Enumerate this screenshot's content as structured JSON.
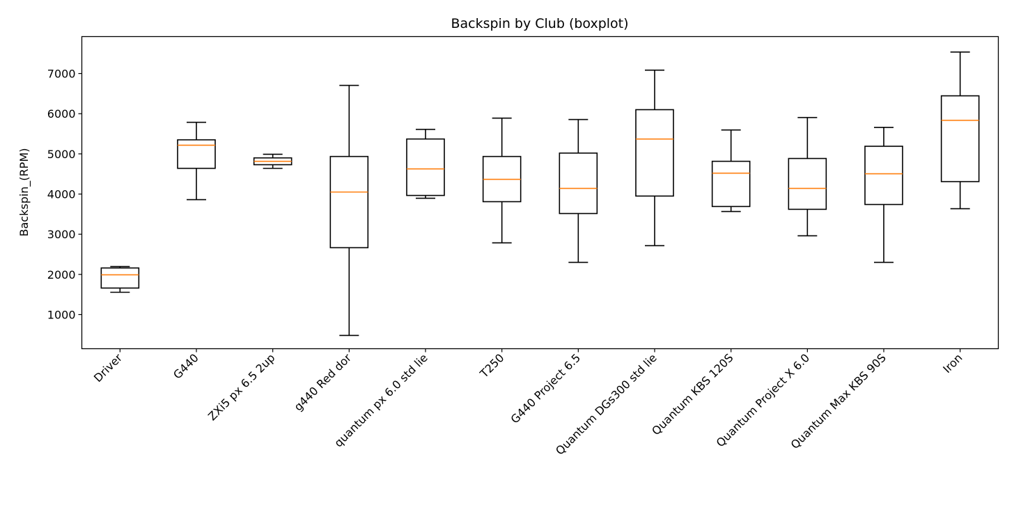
{
  "chart_data": {
    "type": "boxplot",
    "title": "Backspin by Club (boxplot)",
    "xlabel": "",
    "ylabel": "Backspin_(RPM)",
    "ylim": [
      150,
      7920
    ],
    "yticks": [
      1000,
      2000,
      3000,
      4000,
      5000,
      6000,
      7000
    ],
    "grid": false,
    "colors": {
      "box": "#000000",
      "median": "#ff7f0e"
    },
    "categories": [
      "Driver",
      "G440",
      "ZXi5 px 6.5 2up",
      "g440 Red dor",
      "quantum px 6.0 std lie",
      "T250",
      "G440 Project 6.5",
      "Quantum DGs300 std lie",
      "Quantum KBS 120S",
      "Quantum Project X 6.0",
      "Quantum Max KBS 90S",
      "Iron"
    ],
    "boxes": [
      {
        "whisker_low": 1555,
        "q1": 1660,
        "median": 1990,
        "q3": 2160,
        "whisker_high": 2195
      },
      {
        "whisker_low": 3860,
        "q1": 4640,
        "median": 5215,
        "q3": 5350,
        "whisker_high": 5785
      },
      {
        "whisker_low": 4640,
        "q1": 4730,
        "median": 4815,
        "q3": 4900,
        "whisker_high": 4990
      },
      {
        "whisker_low": 480,
        "q1": 2665,
        "median": 4050,
        "q3": 4935,
        "whisker_high": 6705
      },
      {
        "whisker_low": 3895,
        "q1": 3965,
        "median": 4625,
        "q3": 5370,
        "whisker_high": 5610
      },
      {
        "whisker_low": 2785,
        "q1": 3810,
        "median": 4365,
        "q3": 4935,
        "whisker_high": 5890
      },
      {
        "whisker_low": 2300,
        "q1": 3515,
        "median": 4140,
        "q3": 5020,
        "whisker_high": 5855
      },
      {
        "whisker_low": 2715,
        "q1": 3950,
        "median": 5370,
        "q3": 6100,
        "whisker_high": 7085
      },
      {
        "whisker_low": 3565,
        "q1": 3690,
        "median": 4520,
        "q3": 4815,
        "whisker_high": 5595
      },
      {
        "whisker_low": 2960,
        "q1": 3620,
        "median": 4140,
        "q3": 4885,
        "whisker_high": 5905
      },
      {
        "whisker_low": 2300,
        "q1": 3740,
        "median": 4505,
        "q3": 5190,
        "whisker_high": 5660
      },
      {
        "whisker_low": 3635,
        "q1": 4310,
        "median": 5835,
        "q3": 6445,
        "whisker_high": 7535
      }
    ]
  }
}
